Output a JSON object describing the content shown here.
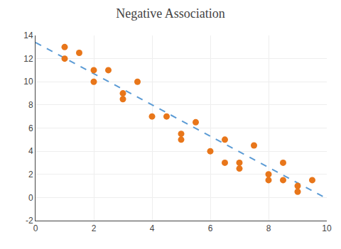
{
  "chart_data": {
    "type": "scatter",
    "title": "Negative Association",
    "series": [
      {
        "type": "scatter",
        "marker": "circle",
        "color": "#E8761A",
        "x": [
          1,
          1,
          1.5,
          2,
          2,
          2.5,
          3,
          3,
          3.5,
          4,
          4.5,
          5,
          5,
          5.5,
          6,
          6.5,
          6.5,
          7,
          7,
          7.5,
          8,
          8,
          8.5,
          8.5,
          9,
          9,
          9.5
        ],
        "values": [
          13,
          12,
          12.5,
          11,
          10,
          11,
          9,
          8.5,
          10,
          7,
          7,
          5,
          5.5,
          6.5,
          4,
          5,
          3,
          3,
          2.5,
          4.5,
          2,
          1.5,
          3,
          1.5,
          1,
          0.5,
          1.5
        ]
      },
      {
        "type": "line",
        "line_style": "dashed",
        "color": "#5B9BD5",
        "x": [
          0,
          10
        ],
        "values": [
          13.4,
          -0.1
        ]
      }
    ],
    "xlim": [
      0,
      10
    ],
    "ylim": [
      -2,
      14
    ],
    "xticks": [
      0,
      2,
      4,
      6,
      8,
      10
    ],
    "yticks": [
      -2,
      0,
      2,
      4,
      6,
      8,
      10,
      12,
      14
    ],
    "grid": true
  }
}
